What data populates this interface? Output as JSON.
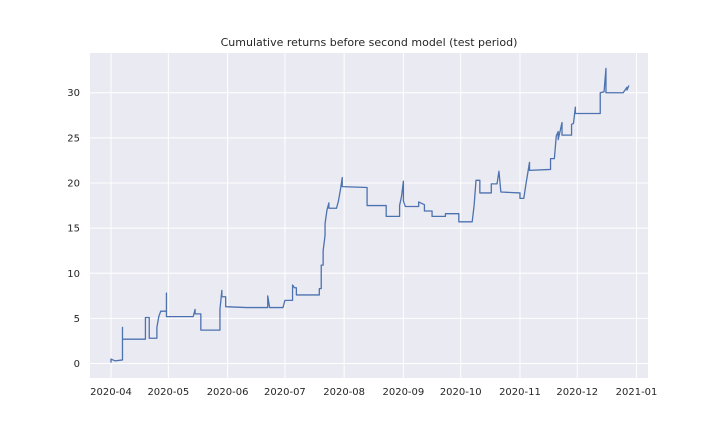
{
  "chart_data": {
    "type": "line",
    "title": "Cumulative returns before second model (test period)",
    "xlabel": "",
    "ylabel": "",
    "xlim": [
      "2020-03-21",
      "2021-01-07"
    ],
    "ylim": [
      -1.6,
      34.4
    ],
    "x_ticks": [
      "2020-04",
      "2020-05",
      "2020-06",
      "2020-07",
      "2020-08",
      "2020-09",
      "2020-10",
      "2020-11",
      "2020-12",
      "2021-01"
    ],
    "y_ticks": [
      0,
      5,
      10,
      15,
      20,
      25,
      30
    ],
    "grid": true,
    "background": "#eaeaf2",
    "series": [
      {
        "name": "",
        "color": "#4c72b0",
        "points": [
          [
            "2020-04-01",
            0.1
          ],
          [
            "2020-04-01",
            0.5
          ],
          [
            "2020-04-03",
            0.3
          ],
          [
            "2020-04-07",
            0.4
          ],
          [
            "2020-04-07",
            4.0
          ],
          [
            "2020-04-07",
            2.7
          ],
          [
            "2020-04-19",
            2.7
          ],
          [
            "2020-04-19",
            5.1
          ],
          [
            "2020-04-21",
            5.1
          ],
          [
            "2020-04-21",
            2.8
          ],
          [
            "2020-04-25",
            2.8
          ],
          [
            "2020-04-25",
            4.0
          ],
          [
            "2020-04-26",
            5.2
          ],
          [
            "2020-04-27",
            5.8
          ],
          [
            "2020-04-30",
            5.8
          ],
          [
            "2020-04-30",
            7.8
          ],
          [
            "2020-04-30",
            5.2
          ],
          [
            "2020-05-14",
            5.2
          ],
          [
            "2020-05-15",
            6.0
          ],
          [
            "2020-05-15",
            5.5
          ],
          [
            "2020-05-18",
            5.5
          ],
          [
            "2020-05-18",
            3.7
          ],
          [
            "2020-05-28",
            3.7
          ],
          [
            "2020-05-28",
            6.0
          ],
          [
            "2020-05-29",
            8.1
          ],
          [
            "2020-05-29",
            7.4
          ],
          [
            "2020-05-31",
            7.4
          ],
          [
            "2020-05-31",
            6.3
          ],
          [
            "2020-06-11",
            6.2
          ],
          [
            "2020-06-22",
            6.2
          ],
          [
            "2020-06-22",
            7.5
          ],
          [
            "2020-06-23",
            6.2
          ],
          [
            "2020-06-30",
            6.2
          ],
          [
            "2020-07-01",
            7.0
          ],
          [
            "2020-07-05",
            7.0
          ],
          [
            "2020-07-05",
            8.7
          ],
          [
            "2020-07-06",
            8.4
          ],
          [
            "2020-07-07",
            8.4
          ],
          [
            "2020-07-07",
            7.6
          ],
          [
            "2020-07-19",
            7.6
          ],
          [
            "2020-07-19",
            8.3
          ],
          [
            "2020-07-20",
            8.3
          ],
          [
            "2020-07-20",
            10.9
          ],
          [
            "2020-07-21",
            10.9
          ],
          [
            "2020-07-21",
            12.5
          ],
          [
            "2020-07-22",
            14.2
          ],
          [
            "2020-07-22",
            15.5
          ],
          [
            "2020-07-23",
            17.0
          ],
          [
            "2020-07-24",
            17.8
          ],
          [
            "2020-07-24",
            17.2
          ],
          [
            "2020-07-28",
            17.2
          ],
          [
            "2020-07-29",
            18.0
          ],
          [
            "2020-07-30",
            19.2
          ],
          [
            "2020-07-31",
            20.6
          ],
          [
            "2020-07-31",
            19.6
          ],
          [
            "2020-08-13",
            19.5
          ],
          [
            "2020-08-13",
            17.5
          ],
          [
            "2020-08-23",
            17.5
          ],
          [
            "2020-08-23",
            16.3
          ],
          [
            "2020-08-30",
            16.3
          ],
          [
            "2020-08-30",
            17.5
          ],
          [
            "2020-08-31",
            18.5
          ],
          [
            "2020-09-01",
            20.2
          ],
          [
            "2020-09-01",
            18.0
          ],
          [
            "2020-09-02",
            17.4
          ],
          [
            "2020-09-09",
            17.4
          ],
          [
            "2020-09-09",
            17.9
          ],
          [
            "2020-09-12",
            17.6
          ],
          [
            "2020-09-12",
            16.9
          ],
          [
            "2020-09-16",
            16.9
          ],
          [
            "2020-09-16",
            16.3
          ],
          [
            "2020-09-23",
            16.3
          ],
          [
            "2020-09-23",
            16.6
          ],
          [
            "2020-09-30",
            16.6
          ],
          [
            "2020-09-30",
            15.7
          ],
          [
            "2020-10-07",
            15.7
          ],
          [
            "2020-10-08",
            17.5
          ],
          [
            "2020-10-09",
            20.3
          ],
          [
            "2020-10-11",
            20.3
          ],
          [
            "2020-10-11",
            18.9
          ],
          [
            "2020-10-17",
            18.9
          ],
          [
            "2020-10-17",
            19.9
          ],
          [
            "2020-10-20",
            19.9
          ],
          [
            "2020-10-21",
            21.3
          ],
          [
            "2020-10-22",
            19.0
          ],
          [
            "2020-11-01",
            18.9
          ],
          [
            "2020-11-01",
            18.3
          ],
          [
            "2020-11-03",
            18.3
          ],
          [
            "2020-11-04",
            19.7
          ],
          [
            "2020-11-05",
            21.0
          ],
          [
            "2020-11-06",
            22.3
          ],
          [
            "2020-11-06",
            21.4
          ],
          [
            "2020-11-17",
            21.5
          ],
          [
            "2020-11-17",
            22.7
          ],
          [
            "2020-11-19",
            22.7
          ],
          [
            "2020-11-20",
            25.2
          ],
          [
            "2020-11-21",
            25.7
          ],
          [
            "2020-11-21",
            24.8
          ],
          [
            "2020-11-23",
            26.7
          ],
          [
            "2020-11-23",
            25.3
          ],
          [
            "2020-11-28",
            25.3
          ],
          [
            "2020-11-28",
            26.5
          ],
          [
            "2020-11-29",
            26.6
          ],
          [
            "2020-11-30",
            28.4
          ],
          [
            "2020-11-30",
            27.7
          ],
          [
            "2020-12-13",
            27.7
          ],
          [
            "2020-12-13",
            30.0
          ],
          [
            "2020-12-15",
            30.1
          ],
          [
            "2020-12-16",
            32.7
          ],
          [
            "2020-12-16",
            30.0
          ],
          [
            "2020-12-25",
            30.0
          ],
          [
            "2020-12-26",
            30.3
          ],
          [
            "2020-12-27",
            30.6
          ],
          [
            "2020-12-27",
            30.3
          ],
          [
            "2020-12-28",
            30.8
          ]
        ]
      }
    ]
  }
}
